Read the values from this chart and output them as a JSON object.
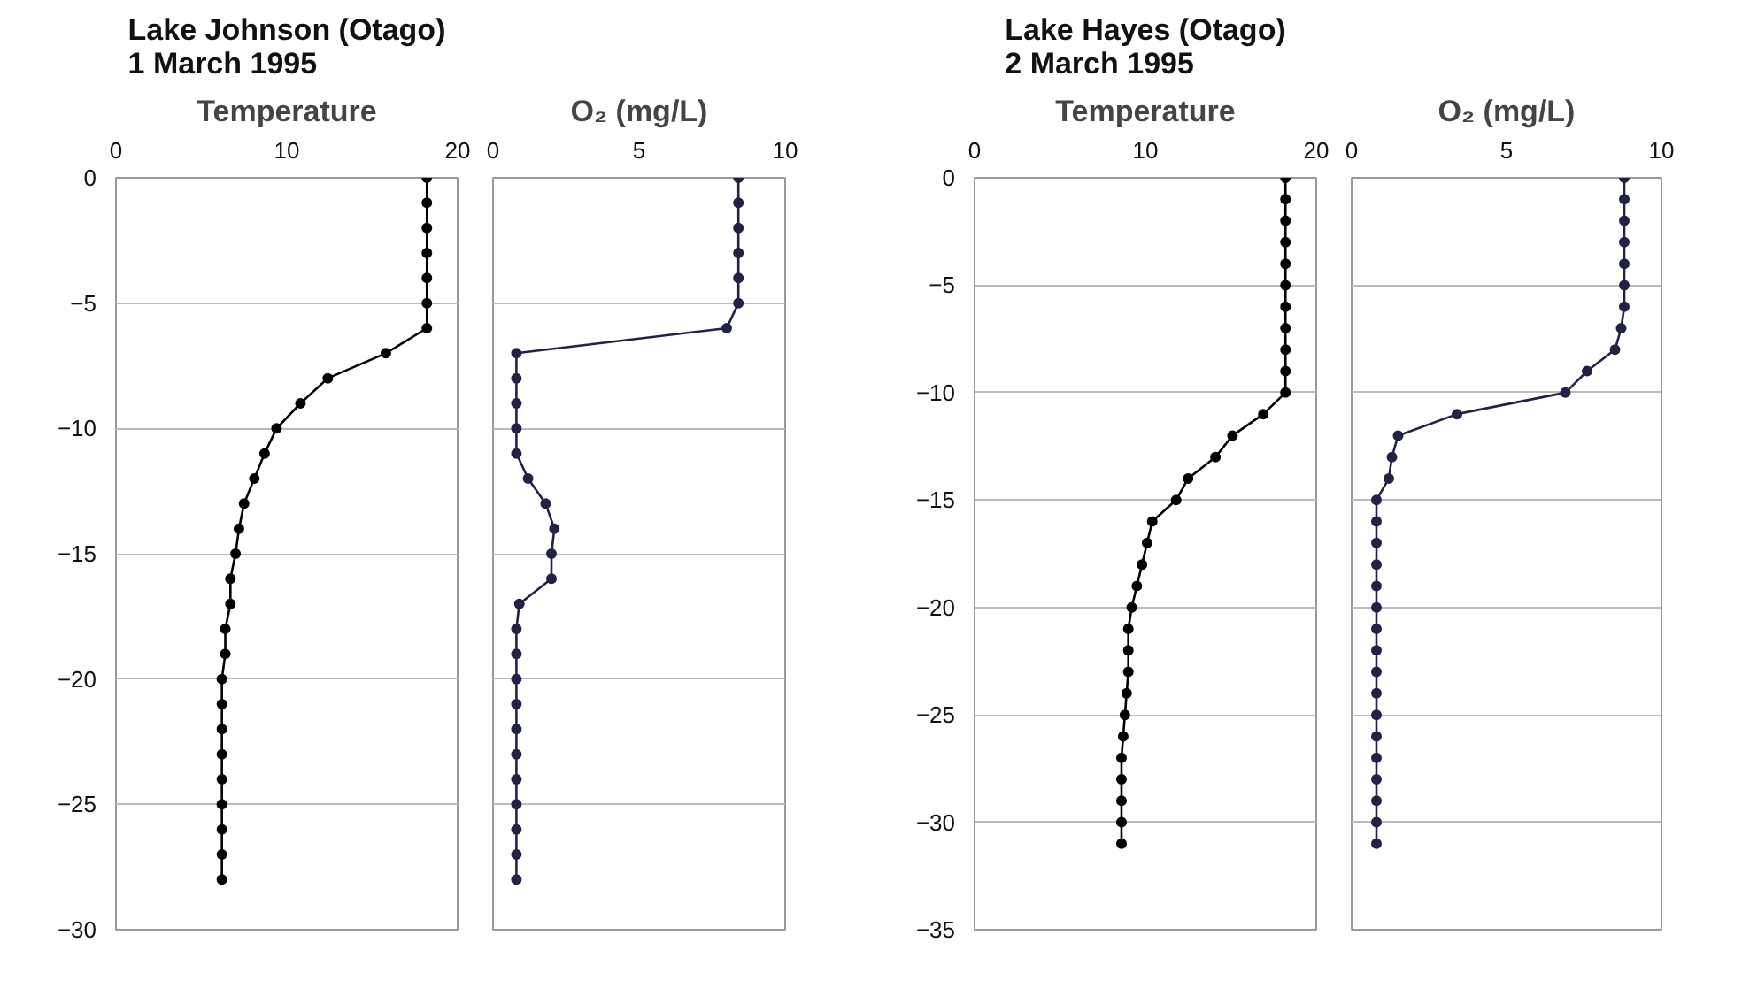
{
  "chart_data": [
    {
      "type": "line",
      "title": "Lake Johnson (Otago)\n1 March 1995",
      "xlabel": "Temperature",
      "xlim": [
        0,
        20
      ],
      "xticks": [
        0,
        10,
        20
      ],
      "ylim": [
        -30,
        0
      ],
      "yticks": [
        0,
        -5,
        -10,
        -15,
        -20,
        -25,
        -30
      ],
      "grid": "y",
      "marker": "circle",
      "series": [
        {
          "color": "#000000",
          "x": [
            18.2,
            18.2,
            18.2,
            18.2,
            18.2,
            18.2,
            18.2,
            15.8,
            12.4,
            10.8,
            9.4,
            8.7,
            8.1,
            7.5,
            7.2,
            7.0,
            6.7,
            6.7,
            6.4,
            6.4,
            6.2,
            6.2,
            6.2,
            6.2,
            6.2,
            6.2,
            6.2,
            6.2,
            6.2
          ],
          "values": [
            0,
            -1,
            -2,
            -3,
            -4,
            -5,
            -6,
            -7,
            -8,
            -9,
            -10,
            -11,
            -12,
            -13,
            -14,
            -15,
            -16,
            -17,
            -18,
            -19,
            -20,
            -21,
            -22,
            -23,
            -24,
            -25,
            -26,
            -27,
            -28
          ]
        }
      ]
    },
    {
      "type": "line",
      "xlabel": "O₂ (mg/L)",
      "xlim": [
        0,
        10
      ],
      "xticks": [
        0,
        5,
        10
      ],
      "ylim": [
        -30,
        0
      ],
      "yticks": [
        0,
        -5,
        -10,
        -15,
        -20,
        -25,
        -30
      ],
      "tick_labels": "x",
      "grid": "y",
      "marker": "circle",
      "series": [
        {
          "color": "#222244",
          "x": [
            8.4,
            8.4,
            8.4,
            8.4,
            8.4,
            8.4,
            8.0,
            0.8,
            0.8,
            0.8,
            0.8,
            0.8,
            1.2,
            1.8,
            2.1,
            2.0,
            2.0,
            0.9,
            0.8,
            0.8,
            0.8,
            0.8,
            0.8,
            0.8,
            0.8,
            0.8,
            0.8,
            0.8,
            0.8
          ],
          "values": [
            0,
            -1,
            -2,
            -3,
            -4,
            -5,
            -6,
            -7,
            -8,
            -9,
            -10,
            -11,
            -12,
            -13,
            -14,
            -15,
            -16,
            -17,
            -18,
            -19,
            -20,
            -21,
            -22,
            -23,
            -24,
            -25,
            -26,
            -27,
            -28
          ]
        }
      ]
    },
    {
      "type": "line",
      "title": "Lake Hayes (Otago)\n2 March 1995",
      "xlabel": "Temperature",
      "xlim": [
        0,
        20
      ],
      "xticks": [
        0,
        10,
        20
      ],
      "ylim": [
        -35,
        0
      ],
      "yticks": [
        0,
        -5,
        -10,
        -15,
        -20,
        -25,
        -30,
        -35
      ],
      "grid": "y",
      "marker": "circle",
      "series": [
        {
          "color": "#000000",
          "x": [
            18.2,
            18.2,
            18.2,
            18.2,
            18.2,
            18.2,
            18.2,
            18.2,
            18.2,
            18.2,
            18.2,
            16.9,
            15.1,
            14.1,
            12.5,
            11.8,
            10.4,
            10.1,
            9.8,
            9.5,
            9.2,
            9.0,
            9.0,
            9.0,
            8.9,
            8.8,
            8.7,
            8.6,
            8.6,
            8.6,
            8.6,
            8.6
          ],
          "values": [
            0,
            -1,
            -2,
            -3,
            -4,
            -5,
            -6,
            -7,
            -8,
            -9,
            -10,
            -11,
            -12,
            -13,
            -14,
            -15,
            -16,
            -17,
            -18,
            -19,
            -20,
            -21,
            -22,
            -23,
            -24,
            -25,
            -26,
            -27,
            -28,
            -29,
            -30,
            -31
          ]
        }
      ]
    },
    {
      "type": "line",
      "xlabel": "O₂ (mg/L)",
      "xlim": [
        0,
        10
      ],
      "xticks": [
        0,
        5,
        10
      ],
      "ylim": [
        -35,
        0
      ],
      "yticks": [
        0,
        -5,
        -10,
        -15,
        -20,
        -25,
        -30,
        -35
      ],
      "tick_labels": "x",
      "grid": "y",
      "marker": "circle",
      "series": [
        {
          "color": "#222244",
          "x": [
            8.8,
            8.8,
            8.8,
            8.8,
            8.8,
            8.8,
            8.8,
            8.7,
            8.5,
            7.6,
            6.9,
            3.4,
            1.5,
            1.3,
            1.2,
            0.8,
            0.8,
            0.8,
            0.8,
            0.8,
            0.8,
            0.8,
            0.8,
            0.8,
            0.8,
            0.8,
            0.8,
            0.8,
            0.8,
            0.8,
            0.8,
            0.8
          ],
          "values": [
            0,
            -1,
            -2,
            -3,
            -4,
            -5,
            -6,
            -7,
            -8,
            -9,
            -10,
            -11,
            -12,
            -13,
            -14,
            -15,
            -16,
            -17,
            -18,
            -19,
            -20,
            -21,
            -22,
            -23,
            -24,
            -25,
            -26,
            -27,
            -28,
            -29,
            -30,
            -31
          ]
        }
      ]
    }
  ]
}
